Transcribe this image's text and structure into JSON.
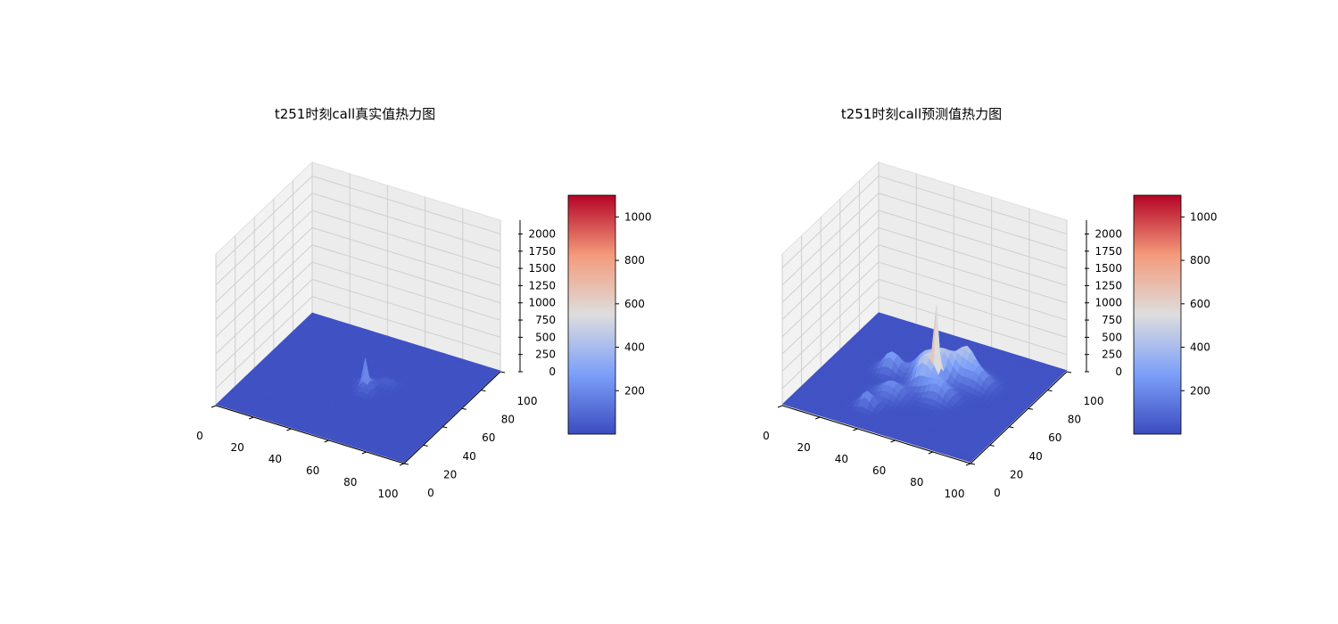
{
  "chart_data": [
    {
      "type": "surface",
      "title": "t251时刻call真实值热力图",
      "xlabel": "",
      "ylabel": "",
      "zlabel": "",
      "xlim": [
        0,
        100
      ],
      "ylim": [
        0,
        100
      ],
      "zlim": [
        0,
        2200
      ],
      "x_ticks": [
        "0",
        "20",
        "40",
        "60",
        "80",
        "100"
      ],
      "y_ticks": [
        "0",
        "20",
        "40",
        "60",
        "80",
        "100"
      ],
      "z_ticks": [
        "0",
        "250",
        "500",
        "750",
        "1000",
        "1250",
        "1500",
        "1750",
        "2000"
      ],
      "colormap": "coolwarm",
      "colorbar": {
        "range": [
          0,
          1100
        ],
        "ticks": [
          "200",
          "400",
          "600",
          "800",
          "1000"
        ]
      },
      "baseline": 15,
      "peaks": [
        {
          "x": 53,
          "y": 52,
          "value": 430,
          "spread": 1.0
        },
        {
          "x": 52,
          "y": 55,
          "value": 120,
          "spread": 2.5
        },
        {
          "x": 55,
          "y": 48,
          "value": 90,
          "spread": 2.5
        },
        {
          "x": 60,
          "y": 60,
          "value": 60,
          "spread": 3
        }
      ]
    },
    {
      "type": "surface",
      "title": "t251时刻call预测值热力图",
      "xlabel": "",
      "ylabel": "",
      "zlabel": "",
      "xlim": [
        0,
        100
      ],
      "ylim": [
        0,
        100
      ],
      "zlim": [
        0,
        2200
      ],
      "x_ticks": [
        "0",
        "20",
        "40",
        "60",
        "80",
        "100"
      ],
      "y_ticks": [
        "0",
        "20",
        "40",
        "60",
        "80",
        "100"
      ],
      "z_ticks": [
        "0",
        "250",
        "500",
        "750",
        "1000",
        "1250",
        "1500",
        "1750",
        "2000"
      ],
      "colormap": "coolwarm",
      "colorbar": {
        "range": [
          0,
          1100
        ],
        "ticks": [
          "200",
          "400",
          "600",
          "800",
          "1000"
        ]
      },
      "baseline": 20,
      "peaks": [
        {
          "x": 55,
          "y": 53,
          "value": 1000,
          "spread": 1.2
        },
        {
          "x": 50,
          "y": 50,
          "value": 420,
          "spread": 4
        },
        {
          "x": 55,
          "y": 62,
          "value": 380,
          "spread": 5
        },
        {
          "x": 62,
          "y": 70,
          "value": 360,
          "spread": 4
        },
        {
          "x": 45,
          "y": 60,
          "value": 300,
          "spread": 5
        },
        {
          "x": 30,
          "y": 55,
          "value": 280,
          "spread": 4
        },
        {
          "x": 40,
          "y": 35,
          "value": 200,
          "spread": 5
        },
        {
          "x": 35,
          "y": 20,
          "value": 220,
          "spread": 3
        },
        {
          "x": 60,
          "y": 45,
          "value": 260,
          "spread": 5
        },
        {
          "x": 70,
          "y": 65,
          "value": 240,
          "spread": 5
        }
      ]
    }
  ]
}
